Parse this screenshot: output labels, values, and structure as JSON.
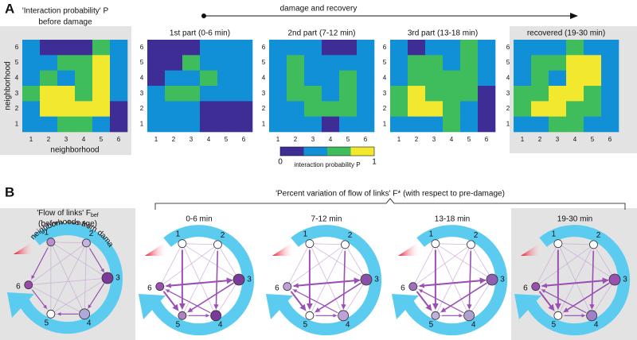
{
  "panel_a": {
    "label": "A",
    "header": "damage and recovery",
    "ticks": [
      "1",
      "2",
      "3",
      "4",
      "5",
      "6"
    ],
    "x_label": "neighborhood",
    "y_label": "neighborhood",
    "colorbar": {
      "colors": [
        "#3f2d96",
        "#1190d8",
        "#3fbd5c",
        "#f2e92e"
      ],
      "min": 0,
      "max": 1,
      "label": "interaction probability P"
    },
    "panels": [
      {
        "title": "'Interaction probability' P",
        "subtitle": "before damage",
        "cells": [
          [
            0.375,
            0.125,
            0.125,
            0.125,
            0.625,
            0.375
          ],
          [
            0.375,
            0.375,
            0.625,
            0.625,
            0.875,
            0.375
          ],
          [
            0.375,
            0.625,
            0.375,
            0.625,
            0.875,
            0.375
          ],
          [
            0.625,
            0.875,
            0.875,
            0.625,
            0.875,
            0.375
          ],
          [
            0.375,
            0.875,
            0.875,
            0.875,
            0.875,
            0.125
          ],
          [
            0.375,
            0.375,
            0.625,
            0.625,
            0.375,
            0.125
          ]
        ]
      },
      {
        "title": "1st part (0-6 min)",
        "cells": [
          [
            0.125,
            0.125,
            0.125,
            0.375,
            0.375,
            0.375
          ],
          [
            0.125,
            0.125,
            0.625,
            0.375,
            0.375,
            0.375
          ],
          [
            0.125,
            0.375,
            0.375,
            0.625,
            0.375,
            0.375
          ],
          [
            0.375,
            0.625,
            0.625,
            0.375,
            0.375,
            0.375
          ],
          [
            0.375,
            0.375,
            0.375,
            0.125,
            0.125,
            0.125
          ],
          [
            0.375,
            0.375,
            0.375,
            0.125,
            0.125,
            0.125
          ]
        ]
      },
      {
        "title": "2nd part (7-12 min)",
        "cells": [
          [
            0.375,
            0.375,
            0.375,
            0.125,
            0.125,
            0.375
          ],
          [
            0.375,
            0.625,
            0.375,
            0.375,
            0.375,
            0.375
          ],
          [
            0.375,
            0.625,
            0.375,
            0.375,
            0.625,
            0.375
          ],
          [
            0.375,
            0.625,
            0.625,
            0.375,
            0.625,
            0.375
          ],
          [
            0.375,
            0.375,
            0.625,
            0.625,
            0.625,
            0.375
          ],
          [
            0.375,
            0.375,
            0.375,
            0.125,
            0.375,
            0.375
          ]
        ]
      },
      {
        "title": "3rd part (13-18 min)",
        "cells": [
          [
            0.375,
            0.125,
            0.375,
            0.375,
            0.625,
            0.375
          ],
          [
            0.375,
            0.625,
            0.625,
            0.375,
            0.625,
            0.375
          ],
          [
            0.375,
            0.625,
            0.625,
            0.625,
            0.625,
            0.375
          ],
          [
            0.625,
            0.875,
            0.625,
            0.625,
            0.625,
            0.125
          ],
          [
            0.625,
            0.875,
            0.875,
            0.625,
            0.375,
            0.125
          ],
          [
            0.375,
            0.375,
            0.375,
            0.625,
            0.375,
            0.125
          ]
        ]
      },
      {
        "title": "recovered (19-30 min)",
        "cells": [
          [
            0.375,
            0.375,
            0.375,
            0.625,
            0.375,
            0.375
          ],
          [
            0.375,
            0.625,
            0.625,
            0.875,
            0.875,
            0.375
          ],
          [
            0.375,
            0.625,
            0.375,
            0.875,
            0.875,
            0.375
          ],
          [
            0.625,
            0.625,
            0.875,
            0.875,
            0.625,
            0.375
          ],
          [
            0.625,
            0.875,
            0.875,
            0.625,
            0.625,
            0.375
          ],
          [
            0.375,
            0.375,
            0.625,
            0.625,
            0.375,
            0.375
          ]
        ]
      }
    ]
  },
  "panel_b": {
    "label": "B",
    "header": "'Percent variation of flow of links' F* (with respect to pre-damage)",
    "ring_label": "neighborhoods from damage",
    "node_labels": [
      "1",
      "2",
      "3",
      "4",
      "5",
      "6"
    ],
    "diagrams": [
      {
        "title": "'Flow of links' F",
        "title_sub": "bef",
        "subtitle": "(before damage)",
        "node_colors": [
          "#b98fd0",
          "#c4b4e2",
          "#7a3a9a",
          "#b0a8d8",
          "#ffffff",
          "#9a4aa8"
        ]
      },
      {
        "title": "0-6 min",
        "node_colors": [
          "#ffffff",
          "#ffffff",
          "#7a3a9a",
          "#7a3a9a",
          "#b080c0",
          "#9a50b0"
        ]
      },
      {
        "title": "7-12 min",
        "node_colors": [
          "#ffffff",
          "#ffffff",
          "#8a50a8",
          "#c0a0d8",
          "#ffffff",
          "#c0a0d8"
        ]
      },
      {
        "title": "13-18 min",
        "node_colors": [
          "#ffffff",
          "#ffffff",
          "#9060b0",
          "#b0a0d0",
          "#c0b0e0",
          "#a070c0"
        ]
      },
      {
        "title": "19-30 min",
        "node_colors": [
          "#ffffff",
          "#ffffff",
          "#9a50b0",
          "#a080c8",
          "#ffffff",
          "#9a50b0"
        ]
      }
    ]
  }
}
